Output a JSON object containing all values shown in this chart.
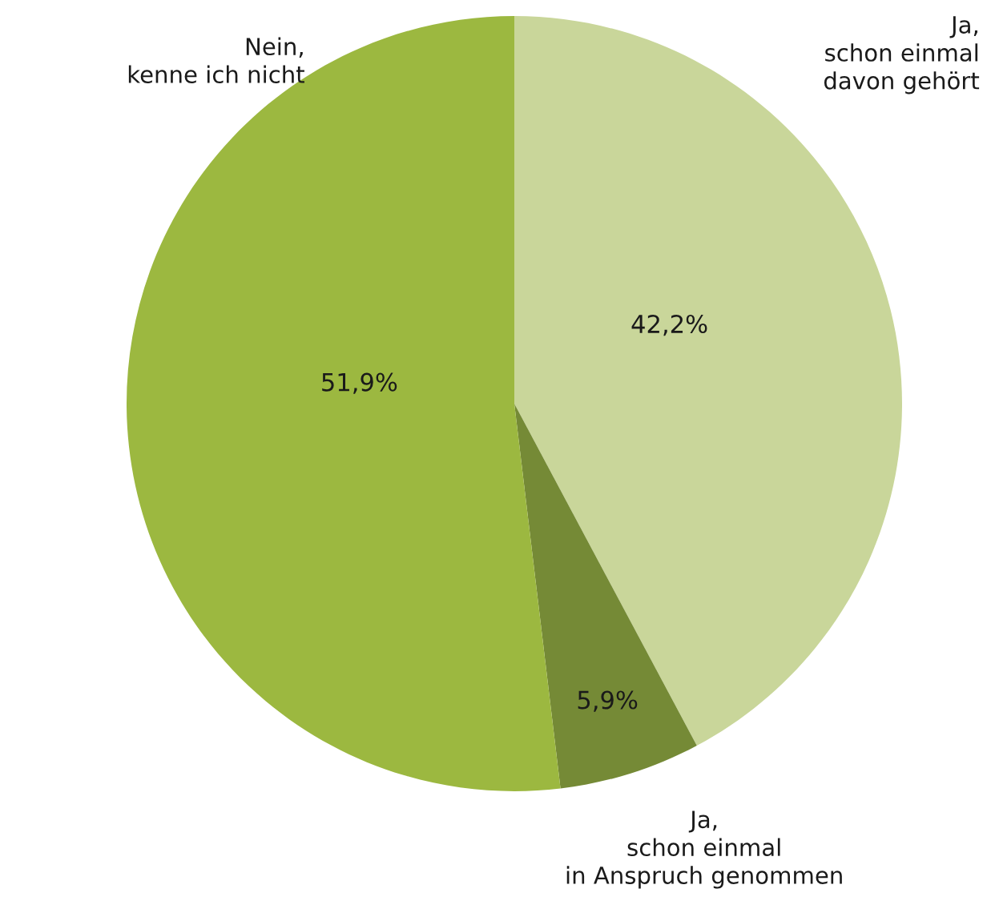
{
  "chart_data": {
    "type": "pie",
    "categories": [
      "Ja,\nschon einmal\ndavon gehört",
      "Ja,\nschon einmal\nin Anspruch genommen",
      "Nein,\nkenne ich nicht"
    ],
    "values": [
      42.2,
      5.9,
      51.9
    ],
    "colors": [
      "#c9d69a",
      "#758a36",
      "#9cb840"
    ],
    "value_labels": [
      "42,2%",
      "5,9%",
      "51,9%"
    ]
  }
}
